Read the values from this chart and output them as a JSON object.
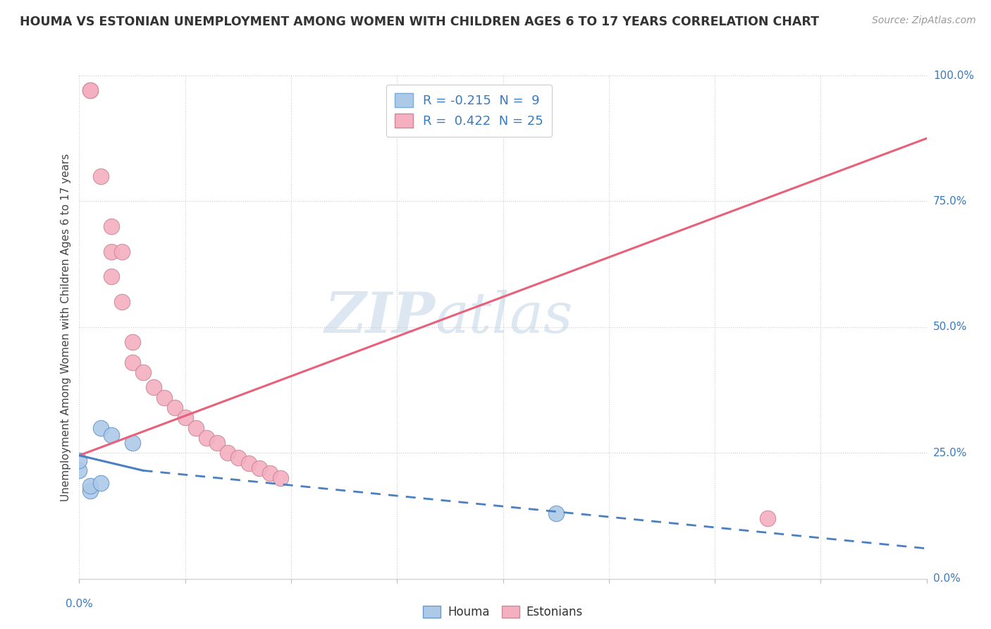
{
  "title": "HOUMA VS ESTONIAN UNEMPLOYMENT AMONG WOMEN WITH CHILDREN AGES 6 TO 17 YEARS CORRELATION CHART",
  "source": "Source: ZipAtlas.com",
  "ylabel": "Unemployment Among Women with Children Ages 6 to 17 years",
  "ylabel_right_ticks": [
    "0.0%",
    "25.0%",
    "50.0%",
    "75.0%",
    "100.0%"
  ],
  "ylabel_right_vals": [
    0.0,
    0.25,
    0.5,
    0.75,
    1.0
  ],
  "houma_R": "-0.215",
  "houma_N": "9",
  "estonian_R": "0.422",
  "estonian_N": "25",
  "houma_color": "#adc9e8",
  "estonian_color": "#f4afc0",
  "houma_line_color": "#4a7fc1",
  "estonian_line_color": "#e8607a",
  "watermark_zip": "ZIP",
  "watermark_atlas": "atlas",
  "houma_points_x": [
    0.0,
    0.0,
    0.001,
    0.001,
    0.002,
    0.002,
    0.003,
    0.005,
    0.045
  ],
  "houma_points_y": [
    0.215,
    0.235,
    0.175,
    0.185,
    0.19,
    0.3,
    0.285,
    0.27,
    0.13
  ],
  "estonian_points_x": [
    0.001,
    0.001,
    0.002,
    0.003,
    0.003,
    0.004,
    0.005,
    0.005,
    0.006,
    0.007,
    0.008,
    0.009,
    0.01,
    0.011,
    0.012,
    0.013,
    0.014,
    0.015,
    0.016,
    0.017,
    0.018,
    0.019,
    0.065,
    0.003,
    0.004
  ],
  "estonian_points_y": [
    0.97,
    0.97,
    0.8,
    0.65,
    0.6,
    0.55,
    0.47,
    0.43,
    0.41,
    0.38,
    0.36,
    0.34,
    0.32,
    0.3,
    0.28,
    0.27,
    0.25,
    0.24,
    0.23,
    0.22,
    0.21,
    0.2,
    0.12,
    0.7,
    0.65
  ],
  "estonian_line_x0": 0.0,
  "estonian_line_y0": 0.245,
  "estonian_line_x1": 0.08,
  "estonian_line_y1": 0.875,
  "houma_line_solid_x0": 0.0,
  "houma_line_solid_y0": 0.245,
  "houma_line_solid_x1": 0.006,
  "houma_line_solid_y1": 0.215,
  "houma_line_dash_x0": 0.006,
  "houma_line_dash_y0": 0.215,
  "houma_line_dash_x1": 0.08,
  "houma_line_dash_y1": 0.06,
  "xlim": [
    0.0,
    0.08
  ],
  "ylim": [
    0.0,
    1.0
  ],
  "background_color": "#ffffff",
  "plot_background": "#ffffff"
}
